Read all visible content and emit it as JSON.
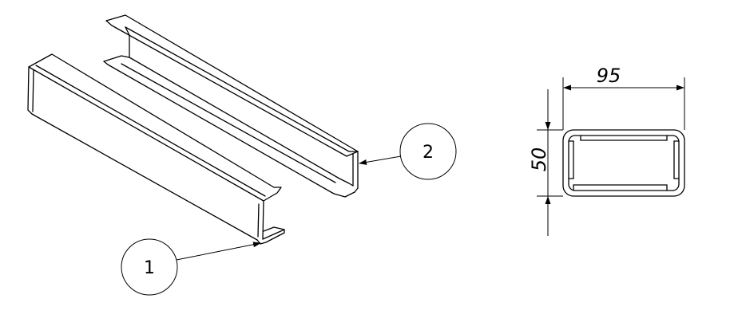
{
  "balloons": [
    {
      "label": "1"
    },
    {
      "label": "2"
    }
  ],
  "dimensions": {
    "width": "95",
    "height": "50"
  }
}
